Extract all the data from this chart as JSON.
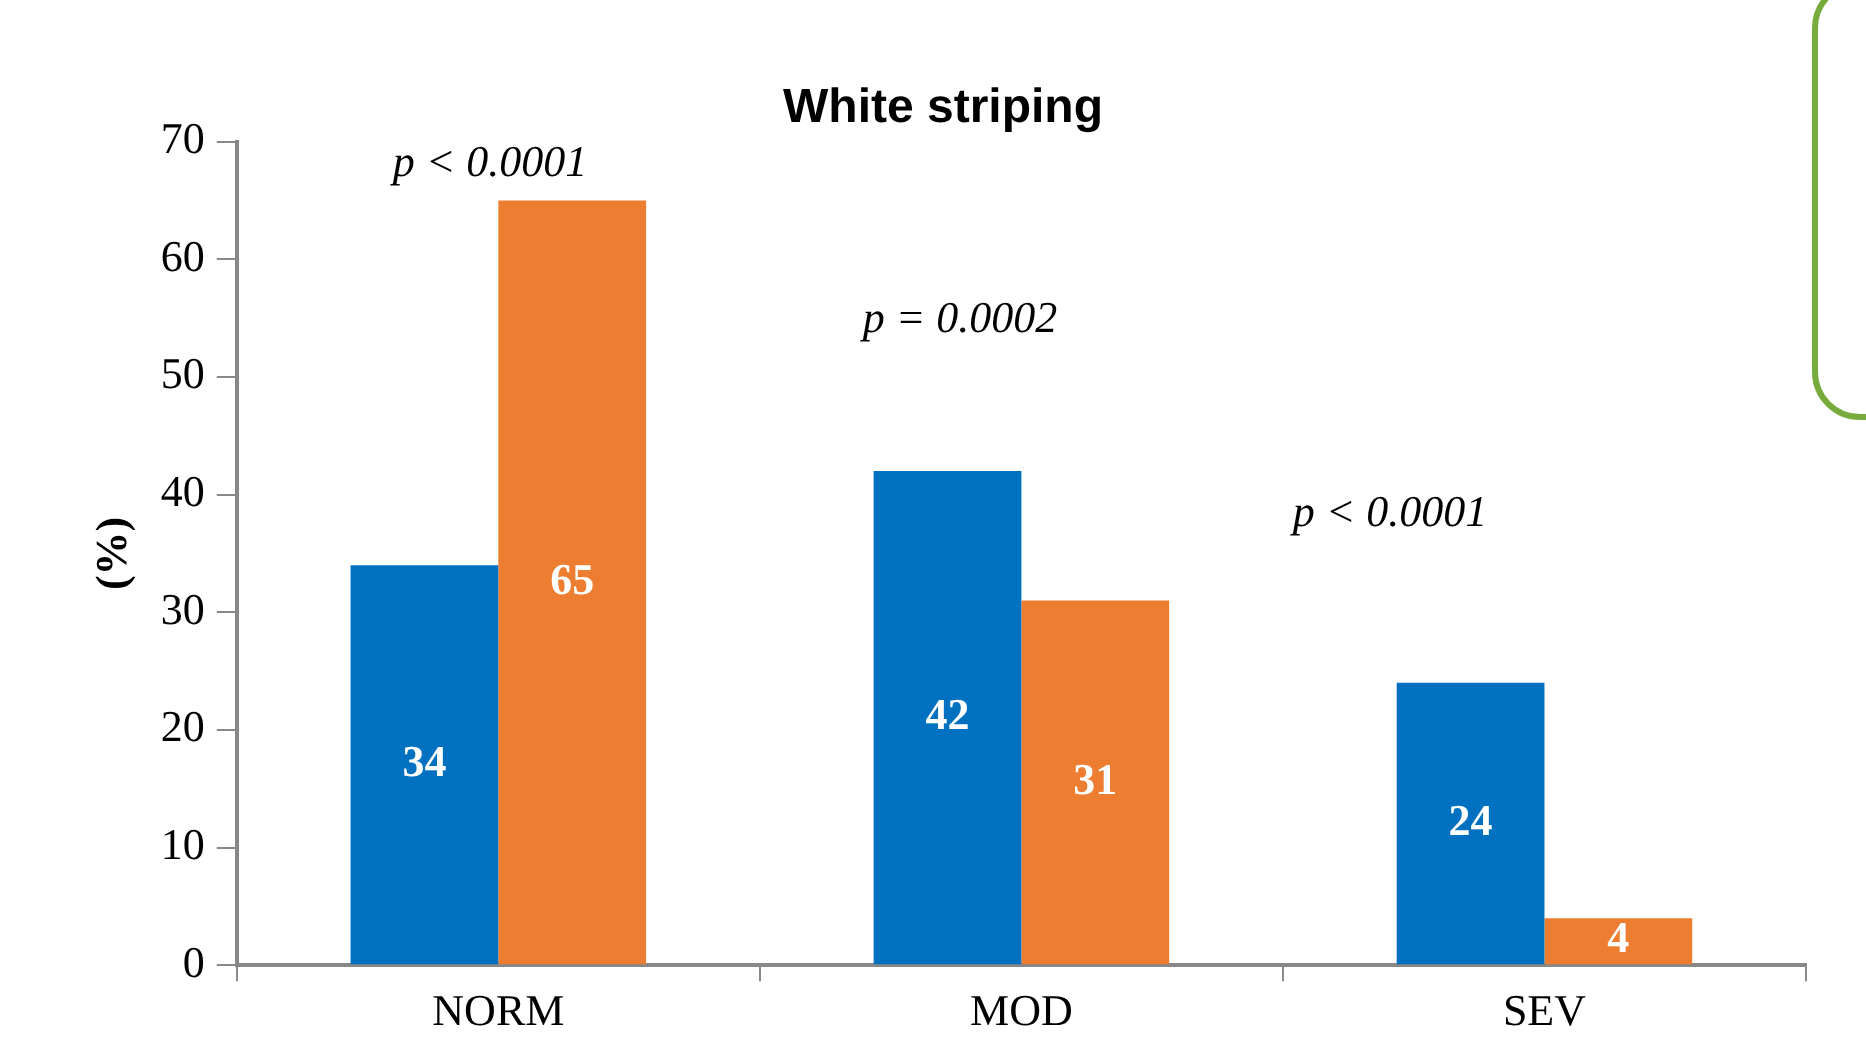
{
  "chart_data": {
    "type": "bar",
    "title": "White striping",
    "ylabel": "(%)",
    "categories": [
      "NORM",
      "MOD",
      "SEV"
    ],
    "series": [
      {
        "color": "#0070c0",
        "values": [
          34,
          42,
          24
        ]
      },
      {
        "color": "#ed7d31",
        "values": [
          65,
          31,
          4
        ]
      }
    ],
    "ylim": [
      0,
      70
    ],
    "yticks": [
      0,
      10,
      20,
      30,
      40,
      50,
      60,
      70
    ],
    "grid": false,
    "legend": false,
    "data_labels": true,
    "annotations": [
      "p < 0.0001",
      "p = 0.0002",
      "p < 0.0001"
    ]
  }
}
